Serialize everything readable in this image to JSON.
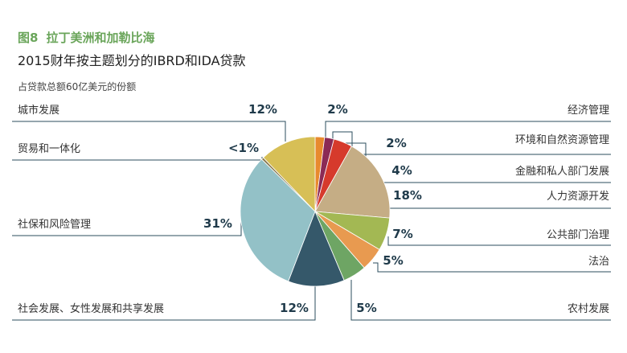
{
  "figure": {
    "label": "图8",
    "region": "拉丁美洲和加勒比海",
    "title": "2015财年按主题划分的IBRD和IDA贷款",
    "subtitle": "占贷款总额60亿美元的份额"
  },
  "chart_data": {
    "type": "pie",
    "title": "2015财年按主题划分的IBRD和IDA贷款",
    "subtitle": "占贷款总额60亿美元的份额",
    "slices": [
      {
        "label": "经济管理",
        "value": 2,
        "display": "2%",
        "color": "#e88a2e"
      },
      {
        "label": "环境和自然资源管理",
        "value": 2,
        "display": "2%",
        "color": "#8b2a55"
      },
      {
        "label": "金融和私人部门发展",
        "value": 4,
        "display": "4%",
        "color": "#d63a2c"
      },
      {
        "label": "人力资源开发",
        "value": 18,
        "display": "18%",
        "color": "#c5ad85"
      },
      {
        "label": "公共部门治理",
        "value": 7,
        "display": "7%",
        "color": "#a3b853"
      },
      {
        "label": "法治",
        "value": 5,
        "display": "5%",
        "color": "#e89a50"
      },
      {
        "label": "农村发展",
        "value": 5,
        "display": "5%",
        "color": "#6ea564"
      },
      {
        "label": "社会发展、女性发展和共享发展",
        "value": 12,
        "display": "12%",
        "color": "#35586a"
      },
      {
        "label": "社保和风险管理",
        "value": 31,
        "display": "31%",
        "color": "#93c1c7"
      },
      {
        "label": "贸易和一体化",
        "value": 0.5,
        "display": "<1%",
        "color": "#8a7a50"
      },
      {
        "label": "城市发展",
        "value": 12,
        "display": "12%",
        "color": "#d7bf56"
      }
    ]
  }
}
